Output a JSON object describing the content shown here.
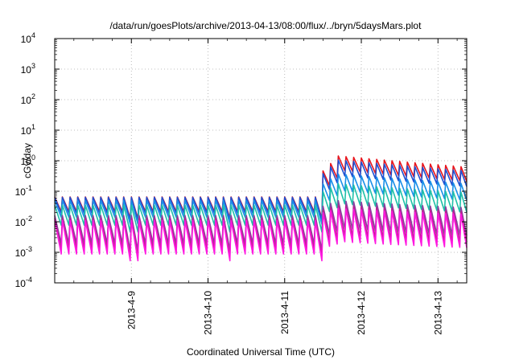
{
  "chart_data": {
    "type": "line",
    "title": "/data/run/goesPlots/archive/2013-04-13/08:00/flux/../bryn/5daysMars.plot",
    "xlabel": "Coordinated Universal Time (UTC)",
    "ylabel": "cGy/day",
    "y_scale": "log",
    "ylim_exponents": [
      -4,
      4
    ],
    "y_tick_base": "10",
    "y_tick_exponents": [
      "-4",
      "-3",
      "-2",
      "-1",
      "0",
      "1",
      "2",
      "3",
      "4"
    ],
    "xlim": [
      "2013-04-08 00:00",
      "2013-04-13 09:00"
    ],
    "x_ticks": [
      "2013-4-9",
      "2013-4-10",
      "2013-4-11",
      "2013-4-12",
      "2013-4-13"
    ],
    "grid": true,
    "legend": "none",
    "sawtooth_period_hours": 2.4,
    "event_onset": "2013-04-11 11:00",
    "event_peak": "2013-04-11 17:00",
    "series": [
      {
        "color": "#e8141c",
        "pre_event_peak": 0.065,
        "event_peak": 1.5,
        "tooth_drop_factor": 0.33
      },
      {
        "color": "#1f4fd0",
        "pre_event_peak": 0.063,
        "event_peak": 1.1,
        "tooth_drop_factor": 0.3
      },
      {
        "color": "#1a8fe8",
        "pre_event_peak": 0.05,
        "event_peak": 0.38,
        "tooth_drop_factor": 0.28
      },
      {
        "color": "#1fc0a8",
        "pre_event_peak": 0.035,
        "event_peak": 0.18,
        "tooth_drop_factor": 0.22
      },
      {
        "color": "#8a3fa0",
        "pre_event_peak": 0.016,
        "event_peak": 0.05,
        "tooth_drop_factor": 0.12
      },
      {
        "color": "#c02090",
        "pre_event_peak": 0.013,
        "event_peak": 0.035,
        "tooth_drop_factor": 0.1
      },
      {
        "color": "#ff18e0",
        "pre_event_peak": 0.011,
        "event_peak": 0.028,
        "tooth_drop_factor": 0.08
      }
    ]
  }
}
